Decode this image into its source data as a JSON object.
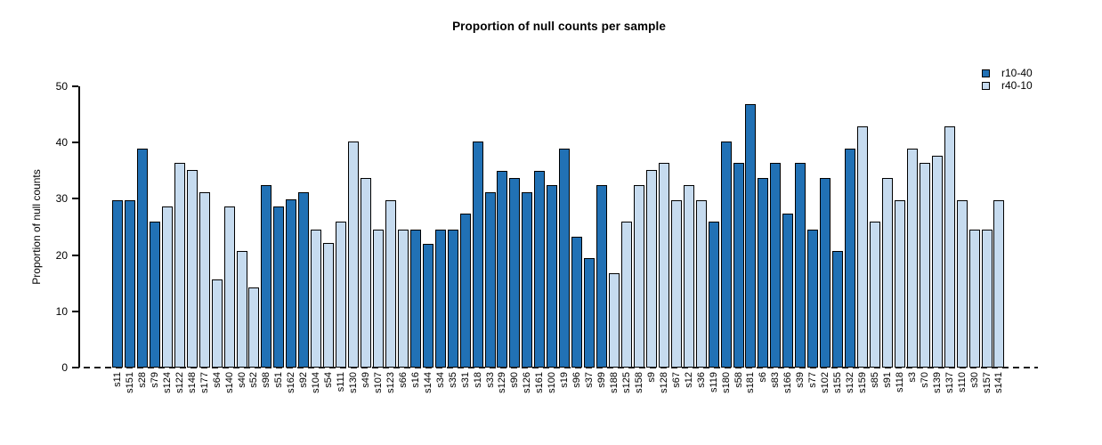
{
  "chart_data": {
    "type": "bar",
    "title": "Proportion of null counts per sample",
    "xlabel": "",
    "ylabel": "Proportion of null counts",
    "ylim": [
      0,
      50
    ],
    "yticks": [
      0,
      10,
      20,
      30,
      40,
      50
    ],
    "grid": false,
    "legend_position": "top-right",
    "zero_line": "dashed",
    "series_colors": {
      "r10-40": "#2171B5",
      "r40-10": "#C6DBEF"
    },
    "legend": [
      {
        "label": "r10-40",
        "color": "#2171B5"
      },
      {
        "label": "r40-10",
        "color": "#C6DBEF"
      }
    ],
    "bars": [
      {
        "sample": "s11",
        "group": "r10-40",
        "value": 29.8
      },
      {
        "sample": "s151",
        "group": "r10-40",
        "value": 29.8
      },
      {
        "sample": "s28",
        "group": "r10-40",
        "value": 39.0
      },
      {
        "sample": "s79",
        "group": "r10-40",
        "value": 26.0
      },
      {
        "sample": "s124",
        "group": "r40-10",
        "value": 28.6
      },
      {
        "sample": "s122",
        "group": "r40-10",
        "value": 36.4
      },
      {
        "sample": "s148",
        "group": "r40-10",
        "value": 35.1
      },
      {
        "sample": "s177",
        "group": "r40-10",
        "value": 31.2
      },
      {
        "sample": "s64",
        "group": "r40-10",
        "value": 15.6
      },
      {
        "sample": "s140",
        "group": "r40-10",
        "value": 28.6
      },
      {
        "sample": "s40",
        "group": "r40-10",
        "value": 20.8
      },
      {
        "sample": "s52",
        "group": "r40-10",
        "value": 14.3
      },
      {
        "sample": "s98",
        "group": "r10-40",
        "value": 32.5
      },
      {
        "sample": "s51",
        "group": "r10-40",
        "value": 28.6
      },
      {
        "sample": "s162",
        "group": "r10-40",
        "value": 29.9
      },
      {
        "sample": "s92",
        "group": "r10-40",
        "value": 31.1
      },
      {
        "sample": "s104",
        "group": "r40-10",
        "value": 24.6
      },
      {
        "sample": "s54",
        "group": "r40-10",
        "value": 22.1
      },
      {
        "sample": "s111",
        "group": "r40-10",
        "value": 26.0
      },
      {
        "sample": "s130",
        "group": "r40-10",
        "value": 40.2
      },
      {
        "sample": "s49",
        "group": "r40-10",
        "value": 33.7
      },
      {
        "sample": "s107",
        "group": "r40-10",
        "value": 24.5
      },
      {
        "sample": "s123",
        "group": "r40-10",
        "value": 29.8
      },
      {
        "sample": "s66",
        "group": "r40-10",
        "value": 24.5
      },
      {
        "sample": "s16",
        "group": "r10-40",
        "value": 24.5
      },
      {
        "sample": "s144",
        "group": "r10-40",
        "value": 22.0
      },
      {
        "sample": "s34",
        "group": "r10-40",
        "value": 24.5
      },
      {
        "sample": "s35",
        "group": "r10-40",
        "value": 24.5
      },
      {
        "sample": "s31",
        "group": "r10-40",
        "value": 27.3
      },
      {
        "sample": "s18",
        "group": "r10-40",
        "value": 40.2
      },
      {
        "sample": "s33",
        "group": "r10-40",
        "value": 31.1
      },
      {
        "sample": "s129",
        "group": "r10-40",
        "value": 35.0
      },
      {
        "sample": "s90",
        "group": "r10-40",
        "value": 33.7
      },
      {
        "sample": "s126",
        "group": "r10-40",
        "value": 31.1
      },
      {
        "sample": "s161",
        "group": "r10-40",
        "value": 35.0
      },
      {
        "sample": "s100",
        "group": "r10-40",
        "value": 32.5
      },
      {
        "sample": "s19",
        "group": "r10-40",
        "value": 38.9
      },
      {
        "sample": "s96",
        "group": "r10-40",
        "value": 23.3
      },
      {
        "sample": "s37",
        "group": "r10-40",
        "value": 19.5
      },
      {
        "sample": "s99",
        "group": "r10-40",
        "value": 32.5
      },
      {
        "sample": "s188",
        "group": "r40-10",
        "value": 16.8
      },
      {
        "sample": "s125",
        "group": "r40-10",
        "value": 26.0
      },
      {
        "sample": "s158",
        "group": "r40-10",
        "value": 32.5
      },
      {
        "sample": "s9",
        "group": "r40-10",
        "value": 35.1
      },
      {
        "sample": "s128",
        "group": "r40-10",
        "value": 36.4
      },
      {
        "sample": "s67",
        "group": "r40-10",
        "value": 29.8
      },
      {
        "sample": "s12",
        "group": "r40-10",
        "value": 32.5
      },
      {
        "sample": "s36",
        "group": "r40-10",
        "value": 29.8
      },
      {
        "sample": "s119",
        "group": "r10-40",
        "value": 26.0
      },
      {
        "sample": "s180",
        "group": "r10-40",
        "value": 40.2
      },
      {
        "sample": "s58",
        "group": "r10-40",
        "value": 36.4
      },
      {
        "sample": "s181",
        "group": "r10-40",
        "value": 46.8
      },
      {
        "sample": "s6",
        "group": "r10-40",
        "value": 33.7
      },
      {
        "sample": "s83",
        "group": "r10-40",
        "value": 36.4
      },
      {
        "sample": "s166",
        "group": "r10-40",
        "value": 27.3
      },
      {
        "sample": "s39",
        "group": "r10-40",
        "value": 36.4
      },
      {
        "sample": "s77",
        "group": "r10-40",
        "value": 24.5
      },
      {
        "sample": "s102",
        "group": "r10-40",
        "value": 33.7
      },
      {
        "sample": "s155",
        "group": "r10-40",
        "value": 20.8
      },
      {
        "sample": "s132",
        "group": "r10-40",
        "value": 38.9
      },
      {
        "sample": "s159",
        "group": "r40-10",
        "value": 42.9
      },
      {
        "sample": "s85",
        "group": "r40-10",
        "value": 26.0
      },
      {
        "sample": "s91",
        "group": "r40-10",
        "value": 33.7
      },
      {
        "sample": "s118",
        "group": "r40-10",
        "value": 29.8
      },
      {
        "sample": "s3",
        "group": "r40-10",
        "value": 38.9
      },
      {
        "sample": "s70",
        "group": "r40-10",
        "value": 36.4
      },
      {
        "sample": "s139",
        "group": "r40-10",
        "value": 37.7
      },
      {
        "sample": "s137",
        "group": "r40-10",
        "value": 42.9
      },
      {
        "sample": "s110",
        "group": "r40-10",
        "value": 29.8
      },
      {
        "sample": "s30",
        "group": "r40-10",
        "value": 24.5
      },
      {
        "sample": "s157",
        "group": "r40-10",
        "value": 24.5
      },
      {
        "sample": "s141",
        "group": "r40-10",
        "value": 29.8
      }
    ]
  }
}
